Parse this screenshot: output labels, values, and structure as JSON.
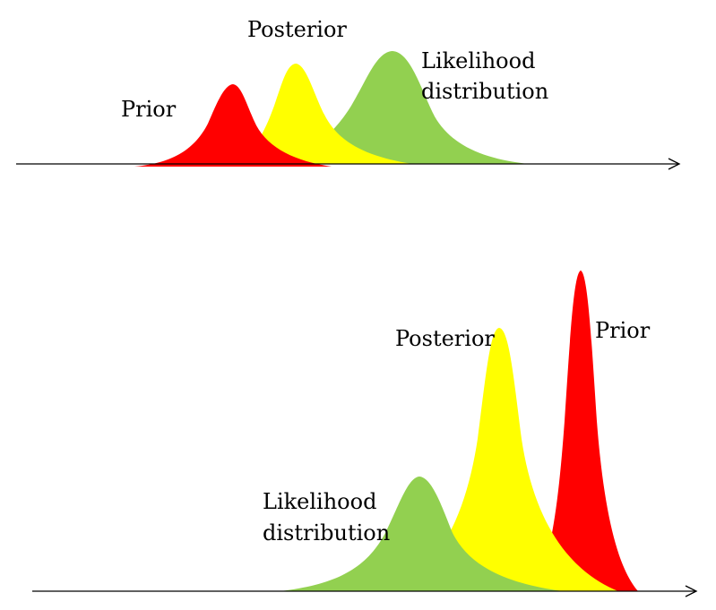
{
  "top_panel": {
    "prior_label": "Prior",
    "posterior_label": "Posterior",
    "likelihood_label_line1": "Likelihood",
    "likelihood_label_line2": "distribution"
  },
  "bottom_panel": {
    "prior_label": "Prior",
    "posterior_label": "Posterior",
    "likelihood_label_line1": "Likelihood",
    "likelihood_label_line2": "distribution"
  },
  "colors": {
    "prior": "#ff0000",
    "posterior": "#ffff00",
    "likelihood": "#92d050",
    "axis": "#000000"
  }
}
